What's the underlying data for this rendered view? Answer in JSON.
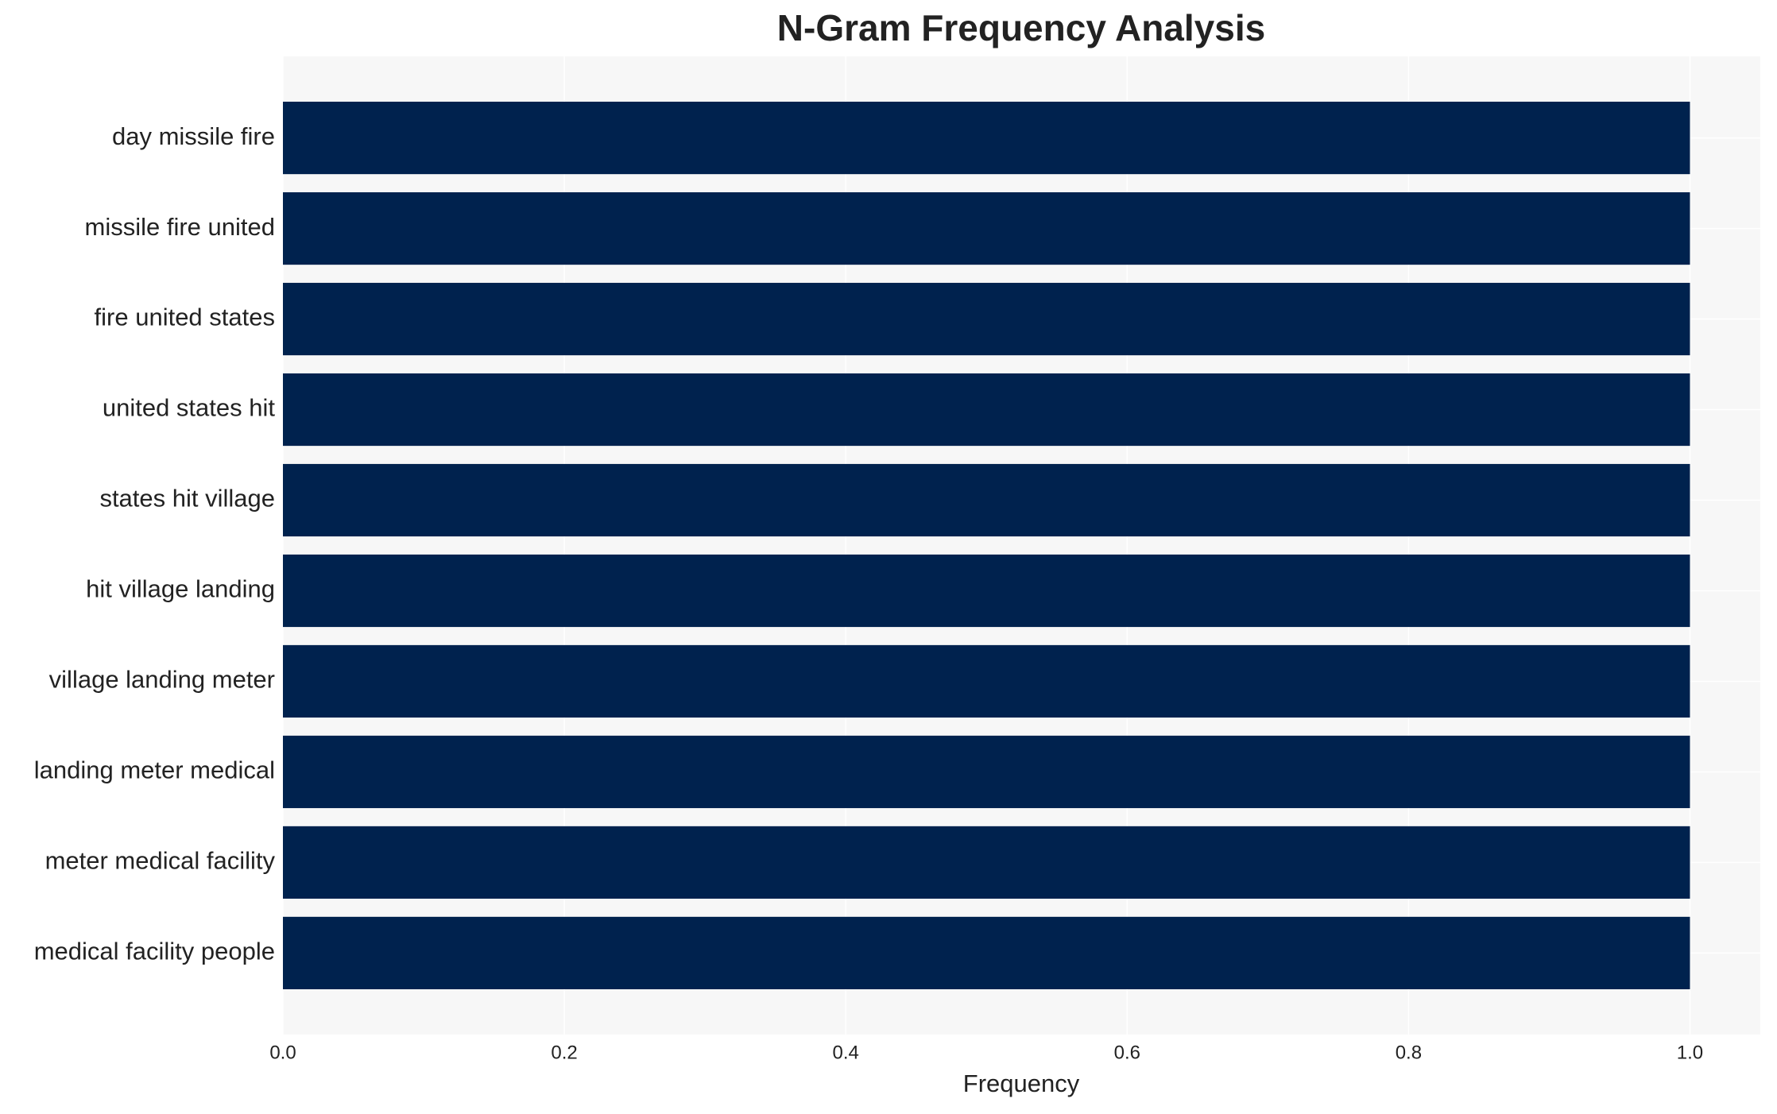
{
  "chart_data": {
    "type": "barh",
    "title": "N-Gram Frequency Analysis",
    "x_label": "Frequency",
    "categories": [
      "day missile fire",
      "missile fire united",
      "fire united states",
      "united states hit",
      "states hit village",
      "hit village landing",
      "village landing meter",
      "landing meter medical",
      "meter medical facility",
      "medical facility people"
    ],
    "values": [
      1,
      1,
      1,
      1,
      1,
      1,
      1,
      1,
      1,
      1
    ],
    "color": "#00224e",
    "xlim": [
      0,
      1.05
    ],
    "xticks": [
      {
        "value": 0,
        "label": "0.0"
      },
      0.2,
      0.4,
      0.6,
      0.8,
      {
        "value": 1,
        "label": "1.0"
      }
    ],
    "grid": true
  }
}
